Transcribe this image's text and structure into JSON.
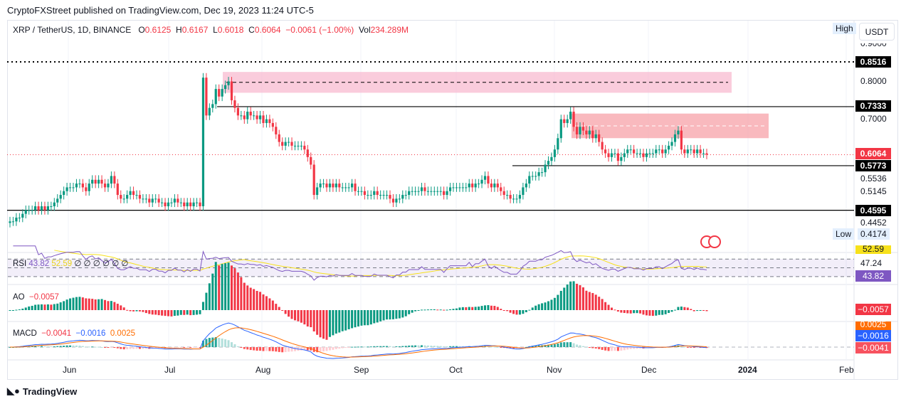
{
  "header": {
    "published": "CryptoFXStreet published on TradingView.com, Dec 19, 2023 11:24 UTC-5"
  },
  "legend": {
    "symbol": "XRP / TetherUS, 1D, BINANCE",
    "o_label": "O",
    "o": "0.6125",
    "h_label": "H",
    "h": "0.6167",
    "l_label": "L",
    "l": "0.6018",
    "c_label": "C",
    "c": "0.6064",
    "change": "−0.0061 (−1.00%)",
    "vol_label": "Vol",
    "vol": "234.289M"
  },
  "price_axis": {
    "currency": "USDT",
    "high_label": "High",
    "low_label": "Low",
    "low_value": "0.4174",
    "ticks": [
      "0.9000",
      "0.8000",
      "0.7000",
      "0.5536",
      "0.5145",
      "0.4452"
    ],
    "level_tags": [
      {
        "value": "0.8516"
      },
      {
        "value": "0.7333"
      },
      {
        "value": "0.5773"
      },
      {
        "value": "0.4595"
      }
    ],
    "last_price": "0.6064"
  },
  "time_axis": [
    "Jun",
    "Jul",
    "Aug",
    "Sep",
    "Oct",
    "Nov",
    "Dec",
    "2024",
    "Feb"
  ],
  "indicators": {
    "rsi": {
      "label": "RSI",
      "value": "43.82",
      "ma": "52.59",
      "extra": "∅ ∅ ∅ ∅ ∅ ∅",
      "axis_value": "47.24",
      "ma_tag": "52.59",
      "color": "#7e57c2",
      "ma_color": "#f7e11b"
    },
    "ao": {
      "label": "AO",
      "value": "−0.0057",
      "tag": "−0.0057"
    },
    "macd": {
      "label": "MACD",
      "hist": "−0.0041",
      "macd": "−0.0016",
      "signal": "0.0025",
      "tag_signal": "0.0025",
      "tag_macd": "−0.0016",
      "tag_hist": "−0.0041"
    }
  },
  "colors": {
    "up": "#089981",
    "down": "#f23645",
    "macd": "#2962ff",
    "signal": "#ff6d00"
  },
  "footer": {
    "brand": "TradingView"
  },
  "chart_data": {
    "type": "candlestick",
    "start": "2023-05-13",
    "interval": "1D",
    "scale": "linear",
    "closes": [
      0.43,
      0.43,
      0.44,
      0.44,
      0.45,
      0.46,
      0.46,
      0.46,
      0.47,
      0.46,
      0.47,
      0.46,
      0.47,
      0.47,
      0.48,
      0.49,
      0.5,
      0.51,
      0.52,
      0.52,
      0.52,
      0.53,
      0.53,
      0.52,
      0.51,
      0.53,
      0.54,
      0.53,
      0.54,
      0.53,
      0.52,
      0.53,
      0.55,
      0.53,
      0.5,
      0.49,
      0.49,
      0.5,
      0.51,
      0.5,
      0.5,
      0.49,
      0.49,
      0.49,
      0.48,
      0.49,
      0.49,
      0.48,
      0.48,
      0.47,
      0.48,
      0.48,
      0.49,
      0.48,
      0.48,
      0.47,
      0.48,
      0.47,
      0.48,
      0.48,
      0.47,
      0.81,
      0.71,
      0.73,
      0.74,
      0.78,
      0.76,
      0.78,
      0.79,
      0.8,
      0.75,
      0.73,
      0.71,
      0.71,
      0.7,
      0.72,
      0.71,
      0.71,
      0.7,
      0.71,
      0.69,
      0.7,
      0.69,
      0.68,
      0.66,
      0.64,
      0.63,
      0.64,
      0.64,
      0.63,
      0.63,
      0.63,
      0.63,
      0.62,
      0.6,
      0.58,
      0.5,
      0.52,
      0.53,
      0.53,
      0.52,
      0.53,
      0.52,
      0.53,
      0.52,
      0.52,
      0.52,
      0.52,
      0.53,
      0.51,
      0.51,
      0.51,
      0.5,
      0.5,
      0.5,
      0.51,
      0.5,
      0.5,
      0.5,
      0.5,
      0.49,
      0.48,
      0.49,
      0.49,
      0.5,
      0.5,
      0.51,
      0.51,
      0.51,
      0.51,
      0.52,
      0.51,
      0.51,
      0.51,
      0.51,
      0.51,
      0.51,
      0.5,
      0.51,
      0.52,
      0.52,
      0.52,
      0.52,
      0.52,
      0.52,
      0.53,
      0.52,
      0.53,
      0.53,
      0.54,
      0.55,
      0.53,
      0.52,
      0.53,
      0.52,
      0.51,
      0.5,
      0.5,
      0.49,
      0.49,
      0.49,
      0.5,
      0.52,
      0.53,
      0.55,
      0.55,
      0.55,
      0.56,
      0.56,
      0.58,
      0.59,
      0.6,
      0.62,
      0.65,
      0.7,
      0.69,
      0.7,
      0.72,
      0.68,
      0.66,
      0.68,
      0.67,
      0.66,
      0.67,
      0.65,
      0.66,
      0.64,
      0.62,
      0.61,
      0.6,
      0.61,
      0.61,
      0.59,
      0.6,
      0.61,
      0.62,
      0.62,
      0.61,
      0.61,
      0.61,
      0.6,
      0.61,
      0.61,
      0.61,
      0.62,
      0.62,
      0.61,
      0.62,
      0.63,
      0.64,
      0.66,
      0.67,
      0.62,
      0.61,
      0.62,
      0.62,
      0.61,
      0.62,
      0.61,
      0.61,
      0.6064
    ],
    "levels": [
      0.8516,
      0.7333,
      0.5773,
      0.4595
    ],
    "zones": [
      {
        "from": 0.77,
        "to": 0.825,
        "color": "#f8bbd0"
      },
      {
        "from": 0.65,
        "to": 0.715,
        "color": "#f7a1a8"
      }
    ]
  }
}
